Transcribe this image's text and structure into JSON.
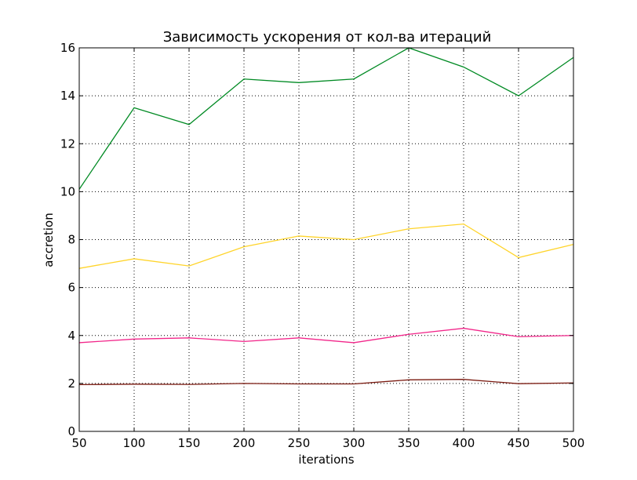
{
  "chart_data": {
    "type": "line",
    "title": "Зависимость ускорения от кол-ва итераций",
    "xlabel": "iterations",
    "ylabel": "accretion",
    "xlim": [
      50,
      500
    ],
    "ylim": [
      0,
      16
    ],
    "xticks": [
      50,
      100,
      150,
      200,
      250,
      300,
      350,
      400,
      450,
      500
    ],
    "yticks": [
      0,
      2,
      4,
      6,
      8,
      10,
      12,
      14,
      16
    ],
    "grid": true,
    "x": [
      50,
      100,
      150,
      200,
      250,
      300,
      350,
      400,
      450,
      500
    ],
    "series": [
      {
        "color": "#008a23",
        "values": [
          10.1,
          13.5,
          12.8,
          14.7,
          14.55,
          14.7,
          16.0,
          15.2,
          14.0,
          15.6
        ]
      },
      {
        "color": "#ffd42a",
        "values": [
          6.8,
          7.2,
          6.9,
          7.7,
          8.15,
          8.0,
          8.45,
          8.65,
          7.25,
          7.8
        ]
      },
      {
        "color": "#f2268a",
        "values": [
          3.7,
          3.85,
          3.9,
          3.75,
          3.9,
          3.7,
          4.05,
          4.3,
          3.95,
          4.0
        ]
      },
      {
        "color": "#7a1a10",
        "values": [
          1.95,
          1.97,
          1.96,
          2.0,
          1.98,
          1.98,
          2.15,
          2.17,
          1.99,
          2.02
        ]
      }
    ]
  }
}
